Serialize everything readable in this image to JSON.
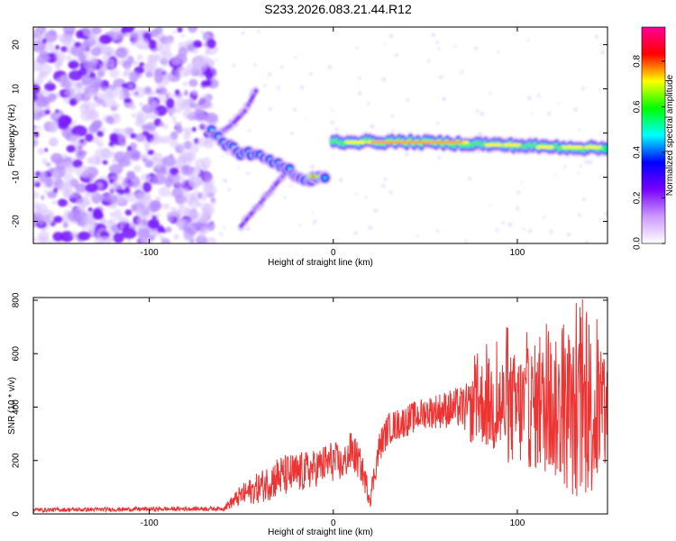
{
  "title": "S233.2026.083.21.44.R12",
  "chart_data": [
    {
      "type": "heatmap",
      "title": "S233.2026.083.21.44.R12",
      "xlabel": "Height of straight line (km)",
      "ylabel": "Frequency (Hz)",
      "xlim": [
        -163,
        149
      ],
      "ylim": [
        -25,
        24
      ],
      "xticks": [
        -100,
        0,
        100
      ],
      "yticks": [
        20,
        10,
        0,
        -10,
        -20
      ],
      "colorbar": {
        "label": "Normalized spectral amplitude",
        "range": [
          0,
          0.95
        ],
        "ticks": [
          "0.0",
          "0.2",
          "0.4",
          "0.6",
          "0.8"
        ],
        "colors": [
          "#ffffff",
          "#cc99ff",
          "#7700ff",
          "#0000ff",
          "#00ffff",
          "#00ff00",
          "#ffff00",
          "#ff0000",
          "#ff0099"
        ]
      },
      "features": [
        {
          "name": "noise-cloud",
          "x": [
            -163,
            -65
          ],
          "y": [
            -25,
            24
          ],
          "amplitude": 0.05
        },
        {
          "name": "main-track",
          "points": [
            [
              -66,
              0.5
            ],
            [
              -58,
              -2.5
            ],
            [
              -50,
              -4.5
            ],
            [
              -40,
              -5
            ],
            [
              -30,
              -7
            ],
            [
              -22,
              -9
            ],
            [
              -16,
              -11
            ],
            [
              -10,
              -10
            ],
            [
              -4,
              -10
            ]
          ],
          "amplitude": 0.3
        },
        {
          "name": "upper-branch",
          "points": [
            [
              -63,
              -0.5
            ],
            [
              -55,
              2
            ],
            [
              -48,
              5
            ],
            [
              -42,
              9.5
            ]
          ],
          "amplitude": 0.05
        },
        {
          "name": "lower-branch",
          "points": [
            [
              -50,
              -21
            ],
            [
              -42,
              -17
            ],
            [
              -34,
              -13
            ],
            [
              -26,
              -9
            ]
          ],
          "amplitude": 0.05
        },
        {
          "name": "flat-track",
          "points": [
            [
              0,
              -2
            ],
            [
              40,
              -2
            ],
            [
              80,
              -2.5
            ],
            [
              110,
              -3
            ],
            [
              148,
              -3.5
            ]
          ],
          "amplitude": 0.9
        }
      ]
    },
    {
      "type": "line",
      "xlabel": "Height of straight line (km)",
      "ylabel": "SNR (10 * v/v)",
      "xlim": [
        -163,
        149
      ],
      "ylim": [
        0,
        810
      ],
      "xticks": [
        -100,
        0,
        100
      ],
      "yticks": [
        0,
        200,
        400,
        600,
        800
      ],
      "series": [
        {
          "name": "SNR",
          "color": "#ee3333",
          "envelope_x": [
            -163,
            -60,
            -50,
            -40,
            -30,
            -20,
            -10,
            0,
            5,
            10,
            15,
            20,
            25,
            30,
            40,
            50,
            60,
            70,
            75,
            80,
            90,
            100,
            110,
            120,
            130,
            140,
            149
          ],
          "envelope_mean": [
            15,
            20,
            70,
            100,
            140,
            150,
            170,
            200,
            180,
            240,
            180,
            60,
            250,
            320,
            350,
            380,
            390,
            400,
            380,
            420,
            400,
            390,
            400,
            390,
            360,
            380,
            340
          ],
          "envelope_spread": [
            8,
            8,
            40,
            60,
            80,
            80,
            70,
            80,
            60,
            80,
            60,
            40,
            60,
            60,
            60,
            60,
            70,
            80,
            120,
            160,
            200,
            220,
            240,
            260,
            300,
            320,
            200
          ]
        }
      ]
    }
  ]
}
